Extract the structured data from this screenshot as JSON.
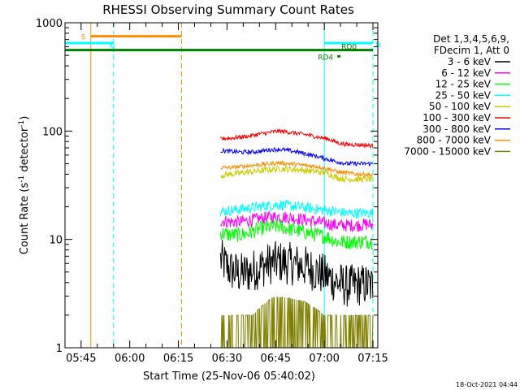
{
  "chart_data": {
    "type": "line",
    "title": "RHESSI Observing Summary Count Rates",
    "xlabel": "Start Time (25-Nov-06 05:40:02)",
    "ylabel": "Count Rate (s⁻¹ detector⁻¹)",
    "ylabel_parts": [
      "Count Rate (s",
      "-1",
      " detector",
      "-1",
      ")"
    ],
    "y_scale": "log",
    "xlim": [
      "05:40:02",
      "07:16:30"
    ],
    "ylim": [
      1,
      1000
    ],
    "x_ticks": [
      "05:45",
      "06:00",
      "06:15",
      "06:30",
      "06:45",
      "07:00",
      "07:15"
    ],
    "y_ticks": [
      "1",
      "10",
      "100",
      "1000"
    ],
    "footer": "18-Oct-2021 04:44",
    "legend": {
      "header": [
        "Det 1,3,4,5,6,9,",
        "FDecim 1, Att 0"
      ],
      "placement": "top-right",
      "entries": [
        {
          "label": "3 - 6 keV",
          "color": "#000000"
        },
        {
          "label": "6 - 12 keV",
          "color": "#ff00ff"
        },
        {
          "label": "12 - 25 keV",
          "color": "#00ff00"
        },
        {
          "label": "25 - 50 keV",
          "color": "#00ffff"
        },
        {
          "label": "50 - 100 keV",
          "color": "#cccc00"
        },
        {
          "label": "100 - 300 keV",
          "color": "#ff0000"
        },
        {
          "label": "300 - 800 keV",
          "color": "#0000ff"
        },
        {
          "label": "800 - 7000 keV",
          "color": "#ff8c00"
        },
        {
          "label": "7000 - 15000 keV",
          "color": "#808000"
        }
      ]
    },
    "data_start": "06:28",
    "data_end": "07:15",
    "series": [
      {
        "name": "3 - 6 keV",
        "color": "#000000",
        "x": [
          "06:28",
          "06:31",
          "06:34",
          "06:37",
          "06:40",
          "06:43",
          "06:46",
          "06:49",
          "06:52",
          "06:55",
          "06:58",
          "07:01",
          "07:04",
          "07:07",
          "07:10",
          "07:13",
          "07:15"
        ],
        "y": [
          6.5,
          5.2,
          4.8,
          5.0,
          5.5,
          6.0,
          6.2,
          6.0,
          5.8,
          5.5,
          5.0,
          4.5,
          4.0,
          3.7,
          3.8,
          3.8,
          3.7
        ],
        "noise": 0.2
      },
      {
        "name": "6 - 12 keV",
        "color": "#ff00ff",
        "x": [
          "06:28",
          "06:31",
          "06:34",
          "06:37",
          "06:40",
          "06:43",
          "06:46",
          "06:49",
          "06:52",
          "06:55",
          "06:58",
          "07:01",
          "07:04",
          "07:07",
          "07:10",
          "07:13",
          "07:15"
        ],
        "y": [
          15,
          14.5,
          14.5,
          15,
          15.5,
          16,
          16.2,
          16,
          15.5,
          15,
          14.5,
          14,
          13.5,
          13.5,
          13.5,
          13.8,
          13.5
        ],
        "noise": 0.06
      },
      {
        "name": "12 - 25 keV",
        "color": "#00ff00",
        "x": [
          "06:28",
          "06:31",
          "06:34",
          "06:37",
          "06:40",
          "06:43",
          "06:46",
          "06:49",
          "06:52",
          "06:55",
          "06:58",
          "07:01",
          "07:04",
          "07:07",
          "07:10",
          "07:13",
          "07:15"
        ],
        "y": [
          11.5,
          11,
          11,
          11.5,
          12.5,
          13,
          13.2,
          12.5,
          12,
          11.5,
          11,
          10.5,
          9.5,
          9.5,
          9.5,
          9.6,
          9.6
        ],
        "noise": 0.07
      },
      {
        "name": "25 - 50 keV",
        "color": "#00ffff",
        "x": [
          "06:28",
          "06:31",
          "06:34",
          "06:37",
          "06:40",
          "06:43",
          "06:46",
          "06:49",
          "06:52",
          "06:55",
          "06:58",
          "07:01",
          "07:04",
          "07:07",
          "07:10",
          "07:13",
          "07:15"
        ],
        "y": [
          18,
          18.5,
          19,
          19.5,
          20,
          20.5,
          21,
          20.5,
          20,
          19.5,
          19,
          18.5,
          18,
          17.5,
          17.5,
          17.5,
          17.5
        ],
        "noise": 0.05
      },
      {
        "name": "50 - 100 keV",
        "color": "#cccc00",
        "x": [
          "06:28",
          "06:31",
          "06:34",
          "06:37",
          "06:40",
          "06:43",
          "06:46",
          "06:49",
          "06:52",
          "06:55",
          "06:58",
          "07:01",
          "07:04",
          "07:07",
          "07:10",
          "07:13",
          "07:15"
        ],
        "y": [
          39,
          40,
          41,
          42,
          43,
          44,
          45,
          44.5,
          44,
          43,
          42,
          41,
          37,
          36,
          36,
          36,
          36
        ],
        "noise": 0.03
      },
      {
        "name": "100 - 300 keV",
        "color": "#ff0000",
        "x": [
          "06:28",
          "06:31",
          "06:34",
          "06:37",
          "06:40",
          "06:43",
          "06:46",
          "06:49",
          "06:52",
          "06:55",
          "06:58",
          "07:01",
          "07:04",
          "07:07",
          "07:10",
          "07:13",
          "07:15"
        ],
        "y": [
          85,
          86,
          88,
          90,
          94,
          97,
          100,
          98,
          95,
          92,
          88,
          85,
          78,
          75,
          75,
          74,
          73
        ],
        "noise": 0.02
      },
      {
        "name": "300 - 800 keV",
        "color": "#0000ff",
        "x": [
          "06:28",
          "06:31",
          "06:34",
          "06:37",
          "06:40",
          "06:43",
          "06:46",
          "06:49",
          "06:52",
          "06:55",
          "06:58",
          "07:01",
          "07:04",
          "07:07",
          "07:10",
          "07:13",
          "07:15"
        ],
        "y": [
          66,
          65,
          64,
          64,
          65,
          67,
          68,
          66,
          64,
          61,
          58,
          55,
          52,
          50,
          50,
          50,
          50
        ],
        "noise": 0.02
      },
      {
        "name": "800 - 7000 keV",
        "color": "#ff8c00",
        "x": [
          "06:28",
          "06:31",
          "06:34",
          "06:37",
          "06:40",
          "06:43",
          "06:46",
          "06:49",
          "06:52",
          "06:55",
          "06:58",
          "07:01",
          "07:04",
          "07:07",
          "07:10",
          "07:13",
          "07:15"
        ],
        "y": [
          46,
          46,
          47,
          48,
          49,
          50,
          51,
          50,
          49,
          48,
          47,
          45,
          42,
          41,
          40,
          40,
          39
        ],
        "noise": 0.02
      },
      {
        "name": "7000 - 15000 keV",
        "color": "#808000",
        "x": [
          "06:28",
          "06:38",
          "06:44",
          "06:48",
          "06:54",
          "07:00",
          "07:05",
          "07:15"
        ],
        "y": [
          1.5,
          1.5,
          2.2,
          2.2,
          2.0,
          1.5,
          1.5,
          1.5
        ],
        "noise": 0.15
      }
    ],
    "flags": [
      {
        "label": "S",
        "color": "#ff8c00",
        "start": "05:48",
        "end": "06:16",
        "level": 750
      },
      {
        "label": "N",
        "color": "#00ffff",
        "start": "05:40",
        "end": "05:55",
        "level": 650
      },
      {
        "label": "N",
        "color": "#00ffff",
        "start": "07:00",
        "end": "07:15",
        "level": 650
      },
      {
        "label": "RD0",
        "color": "#008000",
        "start": "05:40",
        "end": "07:15",
        "level": 560
      },
      {
        "label": "RD4",
        "color": "#008000",
        "start": "07:04",
        "end": "07:05",
        "level": 490
      }
    ],
    "vlines": [
      {
        "time": "05:48",
        "color": "#ff8c00",
        "style": "solid"
      },
      {
        "time": "05:55",
        "color": "#00ffff",
        "style": "dashed"
      },
      {
        "time": "06:16",
        "color": "#ff8c00",
        "style": "dashed"
      },
      {
        "time": "07:00",
        "color": "#00ffff",
        "style": "solid"
      },
      {
        "time": "07:15",
        "color": "#00ffff",
        "style": "dashed"
      }
    ],
    "grid": false
  }
}
